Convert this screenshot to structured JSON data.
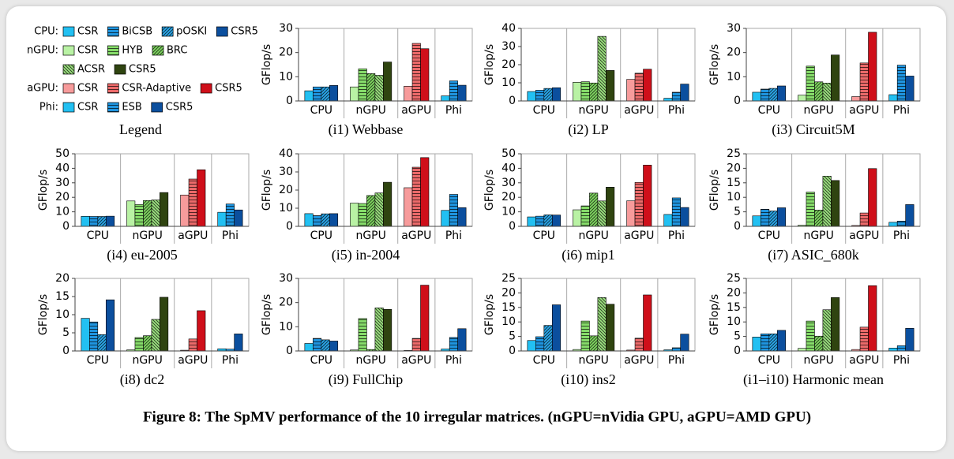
{
  "legend": {
    "title": "Legend",
    "groups": [
      {
        "label": "CPU:",
        "items": [
          {
            "name": "CSR",
            "color": "#22c0f2",
            "pattern": "solid"
          },
          {
            "name": "BiCSB",
            "color": "#1f95e0",
            "pattern": "hlines"
          },
          {
            "name": "pOSKI",
            "color": "#2aa6e8",
            "pattern": "diag"
          },
          {
            "name": "CSR5",
            "color": "#0b4f9e",
            "pattern": "solid"
          }
        ]
      },
      {
        "label": "nGPU:",
        "items": [
          {
            "name": "CSR",
            "color": "#b9f2a4",
            "pattern": "solid"
          },
          {
            "name": "HYB",
            "color": "#86dc6a",
            "pattern": "hlines"
          },
          {
            "name": "BRC",
            "color": "#7fd560",
            "pattern": "diag"
          },
          {
            "name": "ACSR",
            "color": "#9be07f",
            "pattern": "backdiag"
          },
          {
            "name": "CSR5",
            "color": "#2f4410",
            "pattern": "solid"
          }
        ]
      },
      {
        "label": "aGPU:",
        "items": [
          {
            "name": "CSR",
            "color": "#f79b9b",
            "pattern": "solid"
          },
          {
            "name": "CSR-Adaptive",
            "color": "#ec6a6a",
            "pattern": "hlines"
          },
          {
            "name": "CSR5",
            "color": "#cf0f1a",
            "pattern": "solid"
          }
        ]
      },
      {
        "label": "Phi:",
        "items": [
          {
            "name": "CSR",
            "color": "#22c0f2",
            "pattern": "solid"
          },
          {
            "name": "ESB",
            "color": "#1f95e0",
            "pattern": "hlines"
          },
          {
            "name": "CSR5",
            "color": "#0b4f9e",
            "pattern": "solid"
          }
        ]
      }
    ]
  },
  "chart_data": [
    {
      "type": "bar",
      "title": "(i1) Webbase",
      "ylabel": "GFlop/s",
      "categories": [
        "CPU",
        "nGPU",
        "aGPU",
        "Phi"
      ],
      "groups": [
        [
          4.2,
          5.8,
          5.8,
          6.4
        ],
        [
          5.8,
          13.3,
          11.3,
          10.6,
          16.1
        ],
        [
          6.1,
          23.8,
          21.6
        ],
        [
          2.1,
          8.3,
          6.5
        ]
      ],
      "ylim": [
        0,
        30
      ],
      "yticks": [
        0,
        10,
        20,
        30
      ]
    },
    {
      "type": "bar",
      "title": "(i2) LP",
      "ylabel": "GFlop/s",
      "categories": [
        "CPU",
        "nGPU",
        "aGPU",
        "Phi"
      ],
      "groups": [
        [
          5.2,
          5.9,
          6.9,
          7.3
        ],
        [
          10.3,
          10.6,
          9.9,
          35.6,
          16.8
        ],
        [
          11.9,
          15.3,
          17.5
        ],
        [
          1.5,
          4.8,
          9.3
        ]
      ],
      "ylim": [
        0,
        40
      ],
      "yticks": [
        0,
        10,
        20,
        30,
        40
      ]
    },
    {
      "type": "bar",
      "title": "(i3) Circuit5M",
      "ylabel": "GFlop/s",
      "categories": [
        "CPU",
        "nGPU",
        "aGPU",
        "Phi"
      ],
      "groups": [
        [
          3.6,
          4.9,
          5.2,
          6.2
        ],
        [
          2.4,
          14.4,
          7.9,
          7.4,
          19.0
        ],
        [
          1.8,
          15.7,
          28.4
        ],
        [
          2.6,
          14.8,
          10.3
        ]
      ],
      "ylim": [
        0,
        30
      ],
      "yticks": [
        0,
        10,
        20,
        30
      ]
    },
    {
      "type": "bar",
      "title": "(i4) eu-2005",
      "ylabel": "GFlop/s",
      "categories": [
        "CPU",
        "nGPU",
        "aGPU",
        "Phi"
      ],
      "groups": [
        [
          6.9,
          6.8,
          6.8,
          7.0
        ],
        [
          17.5,
          15.0,
          17.8,
          18.2,
          23.3
        ],
        [
          21.6,
          32.6,
          39.0
        ],
        [
          9.7,
          15.4,
          11.3
        ]
      ],
      "ylim": [
        0,
        50
      ],
      "yticks": [
        0,
        10,
        20,
        30,
        40,
        50
      ]
    },
    {
      "type": "bar",
      "title": "(i5) in-2004",
      "ylabel": "GFlop/s",
      "categories": [
        "CPU",
        "nGPU",
        "aGPU",
        "Phi"
      ],
      "groups": [
        [
          7.0,
          5.9,
          6.9,
          7.0
        ],
        [
          12.8,
          12.6,
          17.0,
          18.4,
          24.3
        ],
        [
          21.3,
          32.6,
          37.9
        ],
        [
          8.8,
          17.6,
          10.3
        ]
      ],
      "ylim": [
        0,
        40
      ],
      "yticks": [
        0,
        10,
        20,
        30,
        40
      ]
    },
    {
      "type": "bar",
      "title": "(i6) mip1",
      "ylabel": "GFlop/s",
      "categories": [
        "CPU",
        "nGPU",
        "aGPU",
        "Phi"
      ],
      "groups": [
        [
          6.5,
          7.0,
          7.9,
          7.8
        ],
        [
          11.4,
          14.1,
          22.9,
          17.5,
          27.0
        ],
        [
          17.6,
          30.3,
          42.2
        ],
        [
          8.2,
          19.6,
          13.0
        ]
      ],
      "ylim": [
        0,
        50
      ],
      "yticks": [
        0,
        10,
        20,
        30,
        40,
        50
      ]
    },
    {
      "type": "bar",
      "title": "(i7) ASIC_680k",
      "ylabel": "GFlop/s",
      "categories": [
        "CPU",
        "nGPU",
        "aGPU",
        "Phi"
      ],
      "groups": [
        [
          3.6,
          5.9,
          5.3,
          6.4
        ],
        [
          0.4,
          11.8,
          5.6,
          17.3,
          15.8
        ],
        [
          0.3,
          4.6,
          19.9
        ],
        [
          1.4,
          1.8,
          7.5
        ]
      ],
      "ylim": [
        0,
        25
      ],
      "yticks": [
        0,
        5,
        10,
        15,
        20,
        25
      ]
    },
    {
      "type": "bar",
      "title": "(i8) dc2",
      "ylabel": "GFlop/s",
      "categories": [
        "CPU",
        "nGPU",
        "aGPU",
        "Phi"
      ],
      "groups": [
        [
          9.0,
          8.0,
          4.5,
          14.1
        ],
        [
          0.3,
          3.7,
          4.2,
          8.7,
          14.8
        ],
        [
          0.2,
          3.3,
          11.1
        ],
        [
          0.6,
          0.5,
          4.7
        ]
      ],
      "ylim": [
        0,
        20
      ],
      "yticks": [
        0,
        5,
        10,
        15,
        20
      ]
    },
    {
      "type": "bar",
      "title": "(i9) FullChip",
      "ylabel": "GFlop/s",
      "categories": [
        "CPU",
        "nGPU",
        "aGPU",
        "Phi"
      ],
      "groups": [
        [
          3.1,
          5.2,
          4.6,
          4.1
        ],
        [
          0.4,
          13.4,
          0.6,
          17.8,
          17.2
        ],
        [
          0.2,
          5.2,
          27.2
        ],
        [
          0.8,
          5.6,
          9.2
        ]
      ],
      "ylim": [
        0,
        30
      ],
      "yticks": [
        0,
        10,
        20,
        30
      ]
    },
    {
      "type": "bar",
      "title": "(i10) ins2",
      "ylabel": "GFlop/s",
      "categories": [
        "CPU",
        "nGPU",
        "aGPU",
        "Phi"
      ],
      "groups": [
        [
          3.6,
          4.9,
          8.8,
          15.9
        ],
        [
          0.5,
          10.3,
          5.2,
          18.4,
          16.1
        ],
        [
          0.3,
          4.4,
          19.3
        ],
        [
          0.4,
          1.1,
          5.8
        ]
      ],
      "ylim": [
        0,
        25
      ],
      "yticks": [
        0,
        5,
        10,
        15,
        20,
        25
      ]
    },
    {
      "type": "bar",
      "title": "(i1–i10) Harmonic mean",
      "ylabel": "GFlop/s",
      "categories": [
        "CPU",
        "nGPU",
        "aGPU",
        "Phi"
      ],
      "groups": [
        [
          4.8,
          5.9,
          5.9,
          7.1
        ],
        [
          0.9,
          10.3,
          5.1,
          14.2,
          18.4
        ],
        [
          0.5,
          8.2,
          22.5
        ],
        [
          1.0,
          1.8,
          7.8
        ]
      ],
      "ylim": [
        0,
        25
      ],
      "yticks": [
        0,
        5,
        10,
        15,
        20,
        25
      ]
    }
  ],
  "caption": "Figure 8: The SpMV performance of the 10 irregular matrices. (nGPU=nVidia GPU, aGPU=AMD GPU)"
}
